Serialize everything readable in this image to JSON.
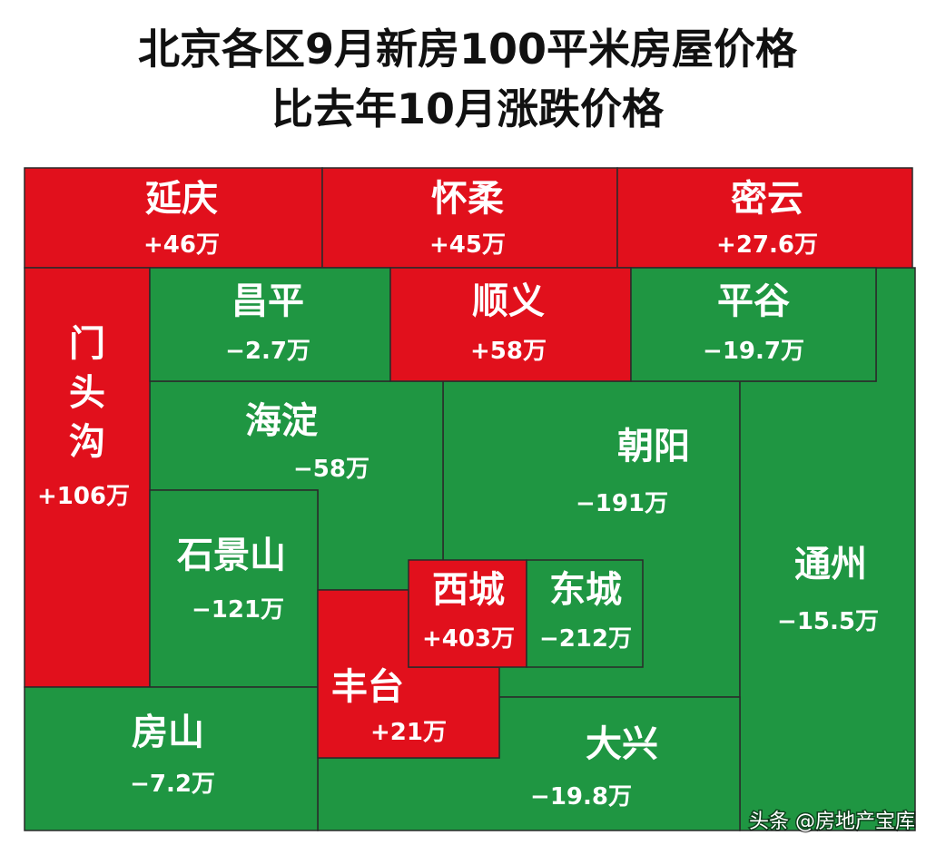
{
  "header": {
    "title_line1": "北京各区9月新房100平米房屋价格",
    "title_line2": "比去年10月涨跌价格"
  },
  "districts": [
    {
      "name": "延庆",
      "change": "+46万",
      "color": "#e1101c"
    },
    {
      "name": "怀柔",
      "change": "+45万",
      "color": "#e1101c"
    },
    {
      "name": "密云",
      "change": "+27.6万",
      "color": "#e1101c"
    },
    {
      "name": "门头沟",
      "change": "+106万",
      "color": "#e1101c"
    },
    {
      "name": "昌平",
      "change": "−2.7万",
      "color": "#1f9642"
    },
    {
      "name": "顺义",
      "change": "+58万",
      "color": "#e1101c"
    },
    {
      "name": "平谷",
      "change": "−19.7万",
      "color": "#1f9642"
    },
    {
      "name": "通州",
      "change": "−15.5万",
      "color": "#1f9642"
    },
    {
      "name": "海淀",
      "change": "−58万",
      "color": "#1f9642"
    },
    {
      "name": "朝阳",
      "change": "−191万",
      "color": "#1f9642"
    },
    {
      "name": "石景山",
      "change": "−121万",
      "color": "#1f9642"
    },
    {
      "name": "西城",
      "change": "+403万",
      "color": "#e1101c"
    },
    {
      "name": "东城",
      "change": "−212万",
      "color": "#1f9642"
    },
    {
      "name": "丰台",
      "change": "+21万",
      "color": "#e1101c"
    },
    {
      "name": "大兴",
      "change": "−19.8万",
      "color": "#1f9642"
    },
    {
      "name": "房山",
      "change": "−7.2万",
      "color": "#1f9642"
    }
  ],
  "watermark": "头条 @房地产宝库"
}
